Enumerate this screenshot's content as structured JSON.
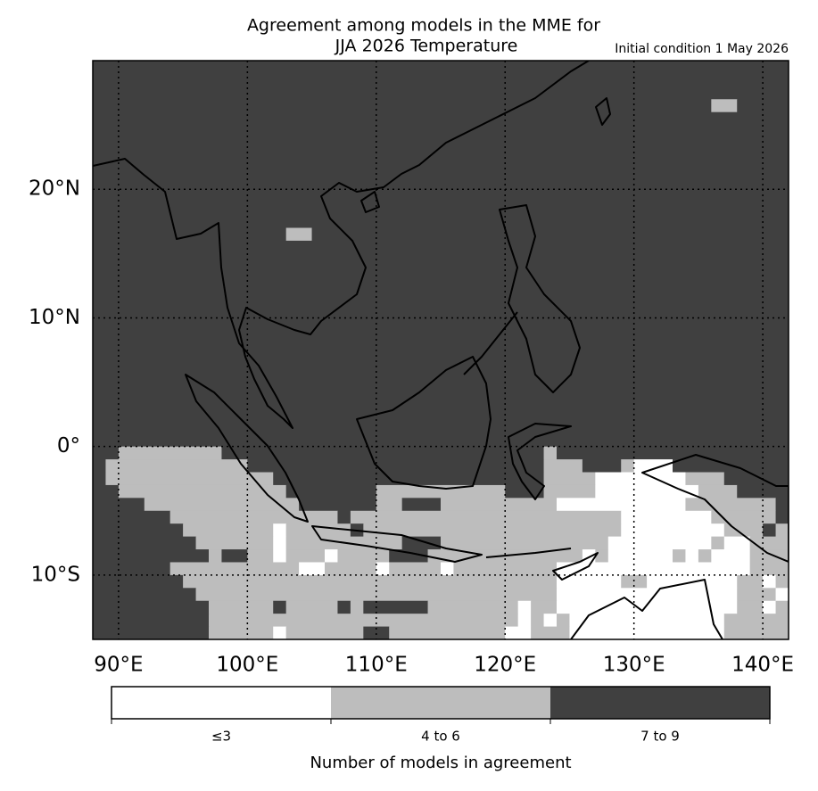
{
  "chart_data": {
    "type": "gridmap",
    "title": [
      "Agreement among models in the MME for",
      "JJA 2026  Temperature"
    ],
    "subtitle": "Initial condition 1 May 2026",
    "xlim": [
      88,
      142
    ],
    "ylim": [
      -15,
      30
    ],
    "xticks": [
      {
        "value": 90,
        "label": "90°E"
      },
      {
        "value": 100,
        "label": "100°E"
      },
      {
        "value": 110,
        "label": "110°E"
      },
      {
        "value": 120,
        "label": "120°E"
      },
      {
        "value": 130,
        "label": "130°E"
      },
      {
        "value": 140,
        "label": "140°E"
      }
    ],
    "yticks": [
      {
        "value": -10,
        "label": "10°S"
      },
      {
        "value": 0,
        "label": "0°"
      },
      {
        "value": 10,
        "label": "10°N"
      },
      {
        "value": 20,
        "label": "20°N"
      }
    ],
    "grid": true,
    "classes": [
      {
        "label": "≤3",
        "color": "#ffffff"
      },
      {
        "label": "4 to 6",
        "color": "#bdbdbd"
      },
      {
        "label": "7 to 9",
        "color": "#404040"
      }
    ],
    "colorbar_title": "Number of models in agreement",
    "field": [
      [
        [
          2,
          54
        ]
      ],
      [
        [
          2,
          54
        ]
      ],
      [
        [
          2,
          54
        ]
      ],
      [
        [
          2,
          48
        ],
        [
          1,
          2
        ],
        [
          2,
          4
        ]
      ],
      [
        [
          2,
          54
        ]
      ],
      [
        [
          2,
          54
        ]
      ],
      [
        [
          2,
          54
        ]
      ],
      [
        [
          2,
          54
        ]
      ],
      [
        [
          2,
          54
        ]
      ],
      [
        [
          2,
          54
        ]
      ],
      [
        [
          2,
          54
        ]
      ],
      [
        [
          2,
          54
        ]
      ],
      [
        [
          2,
          54
        ]
      ],
      [
        [
          2,
          15
        ],
        [
          1,
          2
        ],
        [
          2,
          37
        ]
      ],
      [
        [
          2,
          54
        ]
      ],
      [
        [
          2,
          54
        ]
      ],
      [
        [
          2,
          54
        ]
      ],
      [
        [
          2,
          54
        ]
      ],
      [
        [
          2,
          54
        ]
      ],
      [
        [
          2,
          54
        ]
      ],
      [
        [
          2,
          54
        ]
      ],
      [
        [
          2,
          54
        ]
      ],
      [
        [
          2,
          54
        ]
      ],
      [
        [
          2,
          54
        ]
      ],
      [
        [
          2,
          54
        ]
      ],
      [
        [
          2,
          54
        ]
      ],
      [
        [
          2,
          54
        ]
      ],
      [
        [
          2,
          54
        ]
      ],
      [
        [
          2,
          54
        ]
      ],
      [
        [
          2,
          54
        ]
      ],
      [
        [
          2,
          2
        ],
        [
          1,
          8
        ],
        [
          2,
          25
        ],
        [
          1,
          1
        ],
        [
          2,
          18
        ]
      ],
      [
        [
          2,
          1
        ],
        [
          1,
          11
        ],
        [
          2,
          23
        ],
        [
          1,
          3
        ],
        [
          2,
          3
        ],
        [
          1,
          1
        ],
        [
          0,
          3
        ],
        [
          2,
          9
        ]
      ],
      [
        [
          2,
          1
        ],
        [
          1,
          13
        ],
        [
          2,
          21
        ],
        [
          1,
          4
        ],
        [
          0,
          7
        ],
        [
          1,
          3
        ],
        [
          2,
          5
        ]
      ],
      [
        [
          2,
          2
        ],
        [
          1,
          13
        ],
        [
          2,
          7
        ],
        [
          1,
          10
        ],
        [
          2,
          3
        ],
        [
          1,
          4
        ],
        [
          0,
          8
        ],
        [
          1,
          3
        ],
        [
          2,
          4
        ]
      ],
      [
        [
          2,
          4
        ],
        [
          1,
          12
        ],
        [
          2,
          6
        ],
        [
          1,
          2
        ],
        [
          2,
          3
        ],
        [
          1,
          9
        ],
        [
          0,
          10
        ],
        [
          1,
          7
        ],
        [
          2,
          1
        ]
      ],
      [
        [
          2,
          6
        ],
        [
          1,
          13
        ],
        [
          2,
          1
        ],
        [
          1,
          21
        ],
        [
          0,
          7
        ],
        [
          1,
          5
        ],
        [
          2,
          1
        ]
      ],
      [
        [
          2,
          7
        ],
        [
          1,
          7
        ],
        [
          0,
          1
        ],
        [
          1,
          5
        ],
        [
          2,
          1
        ],
        [
          1,
          20
        ],
        [
          0,
          8
        ],
        [
          1,
          3
        ],
        [
          2,
          1
        ],
        [
          1,
          1
        ]
      ],
      [
        [
          2,
          8
        ],
        [
          1,
          6
        ],
        [
          0,
          1
        ],
        [
          1,
          9
        ],
        [
          2,
          3
        ],
        [
          1,
          13
        ],
        [
          0,
          8
        ],
        [
          1,
          1
        ],
        [
          0,
          2
        ],
        [
          1,
          3
        ]
      ],
      [
        [
          2,
          9
        ],
        [
          1,
          1
        ],
        [
          2,
          2
        ],
        [
          1,
          2
        ],
        [
          0,
          1
        ],
        [
          1,
          3
        ],
        [
          0,
          1
        ],
        [
          1,
          4
        ],
        [
          2,
          3
        ],
        [
          1,
          12
        ],
        [
          0,
          1
        ],
        [
          1,
          1
        ],
        [
          0,
          5
        ],
        [
          1,
          1
        ],
        [
          0,
          1
        ],
        [
          1,
          1
        ],
        [
          0,
          3
        ],
        [
          1,
          3
        ]
      ],
      [
        [
          2,
          6
        ],
        [
          1,
          10
        ],
        [
          0,
          2
        ],
        [
          1,
          4
        ],
        [
          0,
          1
        ],
        [
          1,
          4
        ],
        [
          0,
          1
        ],
        [
          1,
          8
        ],
        [
          0,
          15
        ],
        [
          1,
          3
        ]
      ],
      [
        [
          2,
          7
        ],
        [
          1,
          29
        ],
        [
          0,
          5
        ],
        [
          1,
          2
        ],
        [
          0,
          7
        ],
        [
          1,
          2
        ],
        [
          0,
          1
        ],
        [
          1,
          1
        ]
      ],
      [
        [
          2,
          8
        ],
        [
          1,
          28
        ],
        [
          0,
          14
        ],
        [
          1,
          3
        ],
        [
          0,
          1
        ]
      ],
      [
        [
          2,
          9
        ],
        [
          1,
          5
        ],
        [
          2,
          1
        ],
        [
          1,
          4
        ],
        [
          2,
          1
        ],
        [
          1,
          1
        ],
        [
          2,
          5
        ],
        [
          1,
          7
        ],
        [
          0,
          1
        ],
        [
          1,
          2
        ],
        [
          0,
          14
        ],
        [
          1,
          2
        ],
        [
          0,
          1
        ],
        [
          1,
          1
        ]
      ],
      [
        [
          2,
          9
        ],
        [
          1,
          24
        ],
        [
          0,
          1
        ],
        [
          1,
          1
        ],
        [
          0,
          1
        ],
        [
          1,
          1
        ],
        [
          0,
          12
        ],
        [
          1,
          5
        ]
      ],
      [
        [
          2,
          9
        ],
        [
          1,
          5
        ],
        [
          0,
          1
        ],
        [
          1,
          6
        ],
        [
          2,
          2
        ],
        [
          1,
          9
        ],
        [
          0,
          2
        ],
        [
          1,
          3
        ],
        [
          0,
          12
        ],
        [
          1,
          5
        ]
      ]
    ]
  }
}
